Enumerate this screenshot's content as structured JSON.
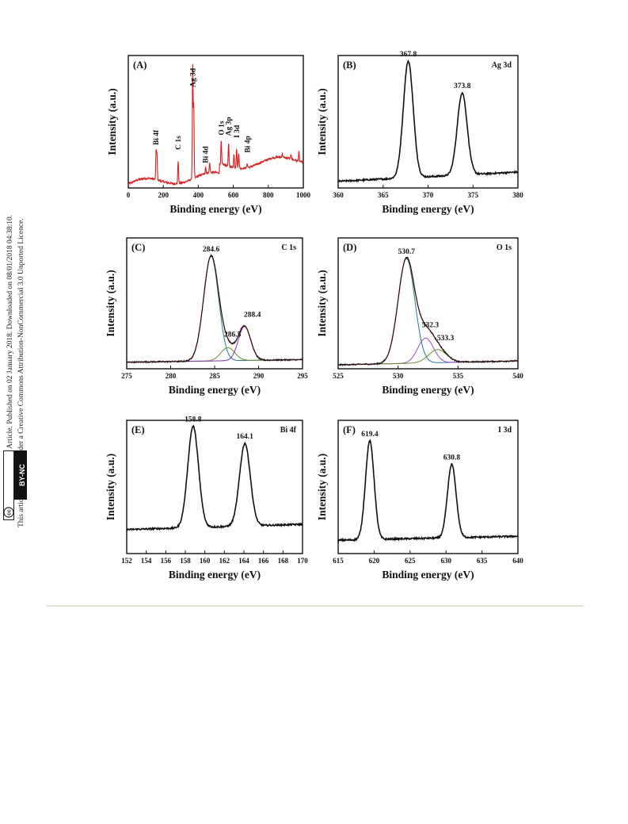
{
  "sidebar": {
    "line1": "Open Access Article. Published on 02 January 2018. Downloaded on 08/01/2018 04:38:10.",
    "line2": "This article is licensed under a Creative Commons Attribution-NonCommercial 3.0 Unported Licence.",
    "badge_left": "cc",
    "badge_right": "BY-NC"
  },
  "chart_data": [
    {
      "type": "line",
      "panel": "(A)",
      "xlabel": "Binding energy (eV)",
      "ylabel": "Intensity (a.u.)",
      "xlim": [
        0,
        1000
      ],
      "xticks": [
        0,
        200,
        400,
        600,
        800,
        1000
      ],
      "color": "#d32020",
      "annotations": [
        {
          "label": "Bi 4f",
          "x": 159
        },
        {
          "label": "C 1s",
          "x": 285
        },
        {
          "label": "Ag 3d",
          "x": 368
        },
        {
          "label": "Bi 4d",
          "x": 442
        },
        {
          "label": "O 1s",
          "x": 531
        },
        {
          "label": "Ag 3p",
          "x": 573
        },
        {
          "label": "I 3d",
          "x": 619
        },
        {
          "label": "Bi 4p",
          "x": 680
        }
      ],
      "survey_peaks": [
        {
          "x": 159,
          "h": 0.22
        },
        {
          "x": 164,
          "h": 0.18
        },
        {
          "x": 285,
          "h": 0.17
        },
        {
          "x": 368,
          "h": 0.85
        },
        {
          "x": 374,
          "h": 0.55
        },
        {
          "x": 442,
          "h": 0.05
        },
        {
          "x": 465,
          "h": 0.08
        },
        {
          "x": 531,
          "h": 0.18
        },
        {
          "x": 573,
          "h": 0.17
        },
        {
          "x": 604,
          "h": 0.1
        },
        {
          "x": 619,
          "h": 0.15
        },
        {
          "x": 631,
          "h": 0.12
        },
        {
          "x": 680,
          "h": 0.03
        },
        {
          "x": 880,
          "h": 0.03
        },
        {
          "x": 930,
          "h": 0.04
        },
        {
          "x": 975,
          "h": 0.07
        }
      ]
    },
    {
      "type": "line",
      "panel": "(B)",
      "label": "Ag 3d",
      "xlabel": "Binding energy (eV)",
      "ylabel": "Intensity (a.u.)",
      "xlim": [
        360,
        380
      ],
      "xticks": [
        360,
        365,
        370,
        375,
        380
      ],
      "peak_labels": [
        "367.8",
        "373.8"
      ],
      "peaks": [
        {
          "x": 367.8,
          "h": 0.88,
          "w": 0.55
        },
        {
          "x": 373.8,
          "h": 0.62,
          "w": 0.55
        }
      ],
      "baseline": [
        0.05,
        0.12
      ]
    },
    {
      "type": "line",
      "panel": "(C)",
      "label": "C 1s",
      "xlabel": "Binding energy (eV)",
      "ylabel": "Intensity (a.u.)",
      "xlim": [
        275,
        295
      ],
      "xticks": [
        275,
        280,
        285,
        290,
        295
      ],
      "peak_labels": [
        "284.6",
        "286.5",
        "288.4"
      ],
      "peaks": [
        {
          "x": 284.6,
          "h": 0.8,
          "w": 0.85
        },
        {
          "x": 286.5,
          "h": 0.1,
          "w": 0.8
        },
        {
          "x": 288.4,
          "h": 0.26,
          "w": 0.7
        }
      ],
      "baseline": [
        0.05,
        0.07
      ]
    },
    {
      "type": "line",
      "panel": "(D)",
      "label": "O 1s",
      "xlabel": "Binding energy (eV)",
      "ylabel": "Intensity (a.u.)",
      "xlim": [
        525,
        540
      ],
      "xticks": [
        525,
        530,
        535,
        540
      ],
      "peak_labels": [
        "530.7",
        "532.3",
        "533.3"
      ],
      "peaks": [
        {
          "x": 530.7,
          "h": 0.8,
          "w": 0.7
        },
        {
          "x": 532.3,
          "h": 0.19,
          "w": 0.65
        },
        {
          "x": 533.3,
          "h": 0.1,
          "w": 0.75
        }
      ],
      "baseline": [
        0.03,
        0.06
      ]
    },
    {
      "type": "line",
      "panel": "(E)",
      "label": "Bi 4f",
      "xlabel": "Binding energy (eV)",
      "ylabel": "Intensity (a.u.)",
      "xlim": [
        152,
        170
      ],
      "xticks": [
        152,
        154,
        156,
        158,
        160,
        162,
        164,
        166,
        168,
        170
      ],
      "peak_labels": [
        "158.8",
        "164.1"
      ],
      "peaks": [
        {
          "x": 158.8,
          "h": 0.76,
          "w": 0.55
        },
        {
          "x": 164.1,
          "h": 0.62,
          "w": 0.55
        }
      ],
      "baseline": [
        0.18,
        0.22
      ]
    },
    {
      "type": "line",
      "panel": "(F)",
      "label": "I 3d",
      "xlabel": "Binding energy (eV)",
      "ylabel": "Intensity (a.u.)",
      "xlim": [
        615,
        640
      ],
      "xticks": [
        615,
        620,
        625,
        630,
        635,
        640
      ],
      "peak_labels": [
        "619.4",
        "630.8"
      ],
      "peaks": [
        {
          "x": 619.4,
          "h": 0.74,
          "w": 0.6
        },
        {
          "x": 630.8,
          "h": 0.55,
          "w": 0.6
        }
      ],
      "baseline": [
        0.1,
        0.13
      ]
    }
  ]
}
